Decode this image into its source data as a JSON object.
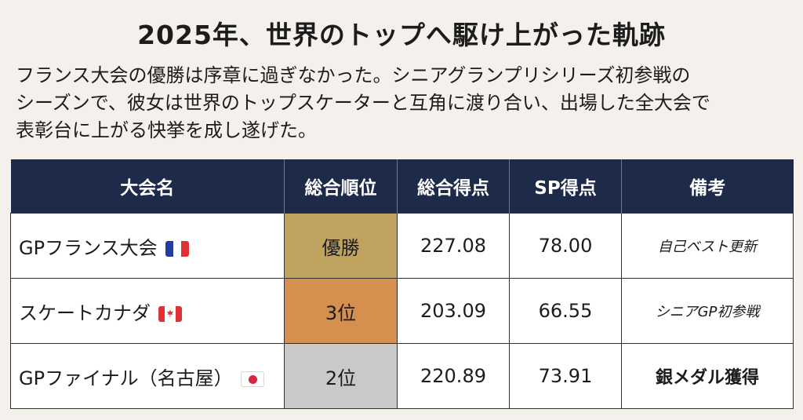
{
  "heading": "2025年、世界のトップへ駆け上がった軌跡",
  "lead_lines": [
    "フランス大会の優勝は序章に過ぎなかった。シニアグランプリシリーズ初参戦の",
    "シーズンで、彼女は世界のトップスケーターと互角に渡り合い、出場した全大会で",
    "表彰台に上がる快挙を成し遂げた。"
  ],
  "table": {
    "columns": [
      "大会名",
      "総合順位",
      "総合得点",
      "SP得点",
      "備考"
    ],
    "rows": [
      {
        "name": "GPフランス大会",
        "flag": "france-flag-icon",
        "rank": "優勝",
        "rank_color": "#bfa35f",
        "total": "227.08",
        "sp": "78.00",
        "note": "自己ベスト更新"
      },
      {
        "name": "スケートカナダ",
        "flag": "canada-flag-icon",
        "rank": "3位",
        "rank_color": "#d58f4e",
        "total": "203.09",
        "sp": "66.55",
        "note": "シニアGP初参戦"
      },
      {
        "name": "GPファイナル（名古屋）",
        "flag": "japan-flag-icon",
        "rank": "2位",
        "rank_color": "#c9c9c9",
        "total": "220.89",
        "sp": "73.91",
        "note": "銀メダル獲得"
      }
    ]
  },
  "colors": {
    "background": "#f4f0eb",
    "header": "#1d2a49"
  }
}
